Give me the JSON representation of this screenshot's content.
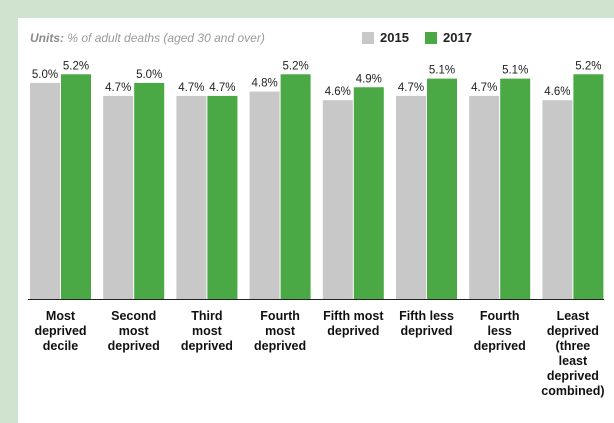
{
  "units": {
    "prefix": "Units:",
    "text": "% of adult deaths (aged 30 and over)"
  },
  "colors": {
    "background": "#cfe3cf",
    "s2015": "#c8c8c8",
    "s2017": "#4aa845"
  },
  "chart_data": {
    "type": "bar",
    "categories": [
      "Most deprived decile",
      "Second most deprived",
      "Third most deprived",
      "Fourth most deprived",
      "Fifth most deprived",
      "Fifth less deprived",
      "Fourth less deprived",
      "Least deprived (three least deprived combined)"
    ],
    "category_lines": [
      [
        "Most",
        "deprived",
        "decile"
      ],
      [
        "Second",
        "most",
        "deprived"
      ],
      [
        "Third",
        "most",
        "deprived"
      ],
      [
        "Fourth",
        "most",
        "deprived"
      ],
      [
        "Fifth most",
        "deprived"
      ],
      [
        "Fifth less",
        "deprived"
      ],
      [
        "Fourth",
        "less",
        "deprived"
      ],
      [
        "Least",
        "deprived",
        "(three",
        "least",
        "deprived",
        "combined)"
      ]
    ],
    "series": [
      {
        "name": "2015",
        "values": [
          5.0,
          4.7,
          4.7,
          4.8,
          4.6,
          4.7,
          4.7,
          4.6
        ]
      },
      {
        "name": "2017",
        "values": [
          5.2,
          5.0,
          4.7,
          5.2,
          4.9,
          5.1,
          5.1,
          5.2
        ]
      }
    ],
    "value_suffix": "%",
    "ylim": [
      0,
      5.6
    ],
    "legend_position": "top",
    "grid": false
  }
}
